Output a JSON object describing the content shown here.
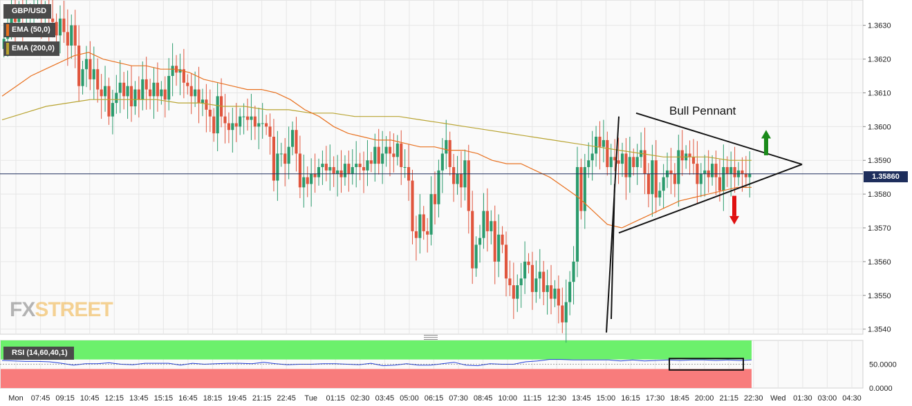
{
  "symbol": "GBP/USD",
  "indicators": {
    "ema50": {
      "label": "EMA (50,0)",
      "color": "#e8701e"
    },
    "ema200": {
      "label": "EMA (200,0)",
      "color": "#b8a330"
    },
    "rsi": {
      "label": "RSI (14,60,40,1)",
      "color": "#2340d8"
    }
  },
  "price_label": "1.35860",
  "logo": {
    "part1": "FX",
    "part2": "STREET"
  },
  "annotation": "Bull Pennant",
  "colors": {
    "up": "#2b9b6d",
    "down": "#e0553d",
    "overbought_band": "#6cf06c",
    "oversold_band": "#f87c7c",
    "grid": "#e6e6e6",
    "price_line": "#1e2e5c",
    "arrow_up": "#1a8a1a",
    "arrow_down": "#e01010"
  },
  "chart_data": {
    "type": "candlestick",
    "title": "",
    "price_axis": {
      "ticks": [
        "1.3630",
        "1.3620",
        "1.3610",
        "1.3600",
        "1.3590",
        "1.3580",
        "1.3570",
        "1.3560",
        "1.3550",
        "1.3540"
      ],
      "range": [
        1.35385,
        1.36375
      ]
    },
    "rsi_axis": {
      "ticks": [
        "50.0000",
        "0.0000"
      ],
      "range": [
        0,
        100
      ],
      "upper_band": 60,
      "lower_band": 40
    },
    "time_axis": [
      "Mon",
      "07:45",
      "09:15",
      "10:45",
      "12:15",
      "13:45",
      "15:15",
      "16:45",
      "18:15",
      "19:45",
      "21:15",
      "22:45",
      "Tue",
      "01:15",
      "02:30",
      "03:45",
      "05:00",
      "06:15",
      "07:30",
      "08:45",
      "10:00",
      "11:15",
      "12:30",
      "13:45",
      "15:00",
      "16:15",
      "17:30",
      "18:45",
      "20:00",
      "21:15",
      "22:30",
      "Wed",
      "01:30",
      "03:00",
      "04:30"
    ],
    "current_price": 1.3586,
    "candles_close": [
      1.3626,
      1.3629,
      1.3635,
      1.3631,
      1.3634,
      1.3632,
      1.3633,
      1.3634,
      1.3635,
      1.3636,
      1.3632,
      1.3634,
      1.3632,
      1.3631,
      1.3627,
      1.3632,
      1.3628,
      1.3624,
      1.363,
      1.3624,
      1.3612,
      1.3617,
      1.362,
      1.3614,
      1.3617,
      1.3611,
      1.3609,
      1.3612,
      1.3603,
      1.3607,
      1.361,
      1.3613,
      1.3609,
      1.3612,
      1.3606,
      1.3611,
      1.3608,
      1.3614,
      1.3611,
      1.3609,
      1.3613,
      1.3609,
      1.3611,
      1.3608,
      1.3615,
      1.3618,
      1.3616,
      1.3617,
      1.3613,
      1.3612,
      1.3609,
      1.3611,
      1.3607,
      1.3608,
      1.3605,
      1.3603,
      1.3598,
      1.3609,
      1.3603,
      1.3601,
      1.3599,
      1.3601,
      1.36,
      1.3603,
      1.3603,
      1.3602,
      1.3603,
      1.36,
      1.3601,
      1.3601,
      1.36,
      1.3597,
      1.3584,
      1.3592,
      1.3592,
      1.3589,
      1.3594,
      1.3599,
      1.3592,
      1.3582,
      1.3585,
      1.3583,
      1.3586,
      1.3585,
      1.3588,
      1.3589,
      1.3587,
      1.3588,
      1.3586,
      1.3587,
      1.3585,
      1.3589,
      1.3586,
      1.3588,
      1.3589,
      1.3588,
      1.3587,
      1.359,
      1.3589,
      1.3594,
      1.3589,
      1.3592,
      1.3594,
      1.3592,
      1.3591,
      1.3595,
      1.3588,
      1.3588,
      1.3584,
      1.3569,
      1.3567,
      1.3574,
      1.3569,
      1.3568,
      1.358,
      1.3577,
      1.3587,
      1.3592,
      1.3596,
      1.3588,
      1.3583,
      1.3586,
      1.3582,
      1.359,
      1.3575,
      1.3558,
      1.3565,
      1.3567,
      1.3575,
      1.3569,
      1.3572,
      1.356,
      1.3568,
      1.3565,
      1.3555,
      1.3553,
      1.3549,
      1.3553,
      1.3555,
      1.356,
      1.3559,
      1.3551,
      1.3555,
      1.3557,
      1.3551,
      1.3553,
      1.3549,
      1.3552,
      1.3547,
      1.3542,
      1.3548,
      1.3554,
      1.356,
      1.3588,
      1.3575,
      1.3588,
      1.359,
      1.3592,
      1.3597,
      1.3594,
      1.3596,
      1.3588,
      1.3591,
      1.359,
      1.3589,
      1.3592,
      1.3585,
      1.3591,
      1.3588,
      1.3591,
      1.3593,
      1.3586,
      1.358,
      1.359,
      1.3579,
      1.3581,
      1.3585,
      1.3587,
      1.3586,
      1.3583,
      1.3593,
      1.359,
      1.3592,
      1.3591,
      1.3589,
      1.3583,
      1.3586,
      1.3587,
      1.3585,
      1.3589,
      1.3585,
      1.3581,
      1.3588,
      1.3586,
      1.3588,
      1.3585,
      1.3587,
      1.3586,
      1.3585,
      1.3586
    ],
    "ema50": [
      1.3609,
      1.3612,
      1.3615,
      1.3617,
      1.3619,
      1.3621,
      1.3622,
      1.362,
      1.3619,
      1.3618,
      1.3618,
      1.3617,
      1.3617,
      1.3616,
      1.3614,
      1.3613,
      1.3612,
      1.3611,
      1.3611,
      1.361,
      1.3608,
      1.3605,
      1.3603,
      1.36,
      1.3598,
      1.3597,
      1.3596,
      1.3596,
      1.3595,
      1.3594,
      1.3594,
      1.3593,
      1.3593,
      1.3592,
      1.359,
      1.3589,
      1.3589,
      1.3587,
      1.3585,
      1.3582,
      1.3579,
      1.3575,
      1.3571,
      1.357,
      1.3572,
      1.3574,
      1.3576,
      1.3578,
      1.3579,
      1.358,
      1.3581,
      1.3582,
      1.3582
    ],
    "ema200": [
      1.3602,
      1.3604,
      1.3606,
      1.3607,
      1.3608,
      1.3608,
      1.3608,
      1.3608,
      1.3607,
      1.3607,
      1.3606,
      1.3606,
      1.3605,
      1.3605,
      1.3604,
      1.3604,
      1.3603,
      1.3603,
      1.3603,
      1.3602,
      1.3601,
      1.36,
      1.3599,
      1.3598,
      1.3597,
      1.3596,
      1.3595,
      1.3594,
      1.3593,
      1.3592,
      1.3591,
      1.3591,
      1.3591,
      1.359,
      1.359
    ],
    "rsi": [
      58,
      57,
      56,
      56,
      55,
      52,
      48,
      51,
      51,
      53,
      50,
      49,
      52,
      52,
      52,
      48,
      52,
      50,
      51,
      52,
      52,
      51,
      54,
      51,
      49,
      50,
      50,
      51,
      51,
      50,
      49,
      52,
      47,
      48,
      51,
      48,
      48,
      51,
      54,
      48,
      47,
      51,
      50,
      50,
      55,
      57,
      60,
      60,
      59,
      59,
      59,
      59,
      57,
      59,
      57,
      58,
      59,
      58,
      59,
      59,
      58,
      59,
      58,
      59
    ]
  }
}
